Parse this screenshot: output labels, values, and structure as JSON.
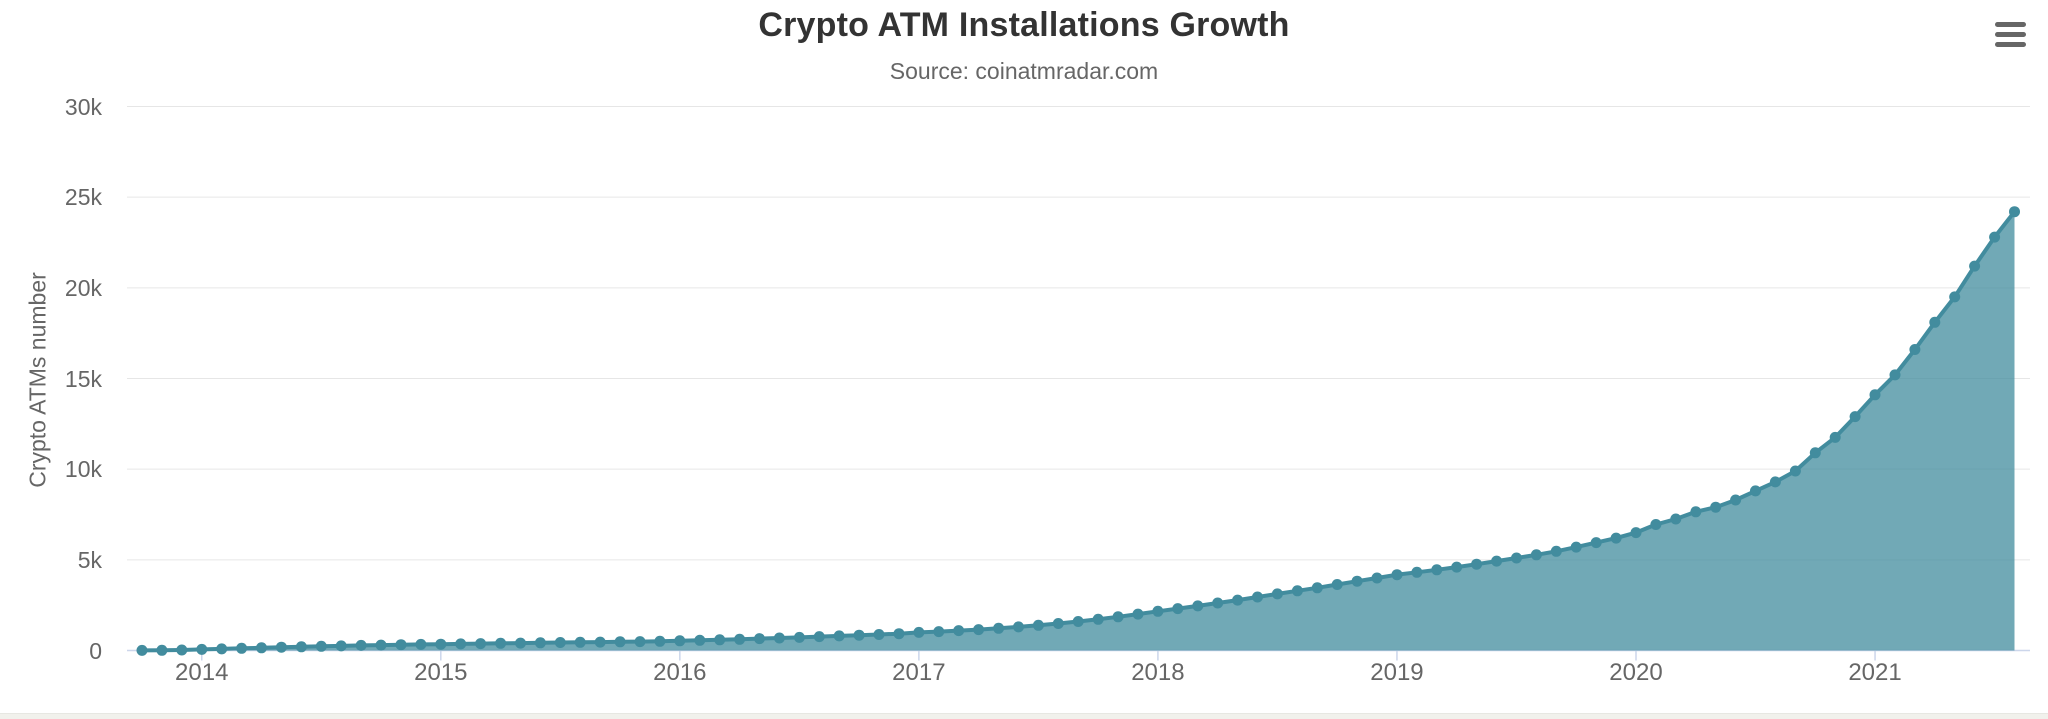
{
  "chart": {
    "title": "Crypto ATM Installations Growth",
    "subtitle": "Source: coinatmradar.com",
    "y_axis_title": "Crypto ATMs number",
    "menu_icon": "hamburger-menu-icon"
  },
  "colors": {
    "line": "#428c9e",
    "fill": "rgba(66,140,158,0.75)",
    "grid": "#e6e6e6",
    "axis": "#ccd6eb",
    "title_text": "#333333",
    "muted_text": "#666666",
    "menu_icon": "#666666",
    "page_strip": "#f1f1ec"
  },
  "chart_data": {
    "type": "area",
    "title": "Crypto ATM Installations Growth",
    "subtitle": "Source: coinatmradar.com",
    "xlabel": "",
    "ylabel": "Crypto ATMs number",
    "ylim": [
      0,
      30000
    ],
    "grid": true,
    "legend": false,
    "interval": "monthly",
    "x_start": "2013-10",
    "x_end": "2021-08",
    "x_tick_labels": [
      "2014",
      "2015",
      "2016",
      "2017",
      "2018",
      "2019",
      "2020",
      "2021"
    ],
    "y_tick_labels": [
      "0",
      "5k",
      "10k",
      "15k",
      "20k",
      "25k",
      "30k"
    ],
    "values": [
      4,
      10,
      30,
      60,
      90,
      120,
      150,
      180,
      205,
      230,
      255,
      280,
      300,
      320,
      335,
      350,
      365,
      380,
      395,
      410,
      425,
      440,
      450,
      465,
      480,
      490,
      505,
      535,
      560,
      590,
      620,
      655,
      690,
      725,
      765,
      805,
      845,
      885,
      925,
      1000,
      1045,
      1095,
      1155,
      1225,
      1300,
      1390,
      1490,
      1600,
      1720,
      1860,
      2010,
      2160,
      2310,
      2460,
      2620,
      2780,
      2950,
      3120,
      3290,
      3460,
      3640,
      3820,
      4000,
      4180,
      4310,
      4450,
      4600,
      4760,
      4930,
      5100,
      5280,
      5470,
      5700,
      5950,
      6200,
      6500,
      6950,
      7250,
      7650,
      7900,
      8300,
      8800,
      9300,
      9900,
      10900,
      11750,
      12900,
      14100,
      15200,
      16600,
      18100,
      19500,
      21200,
      22800,
      24200
    ]
  }
}
